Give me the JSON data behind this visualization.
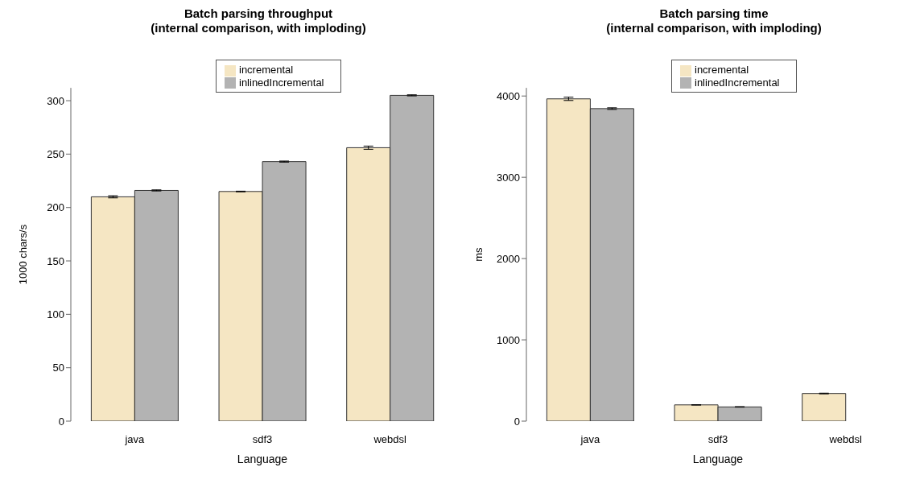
{
  "chart_data": [
    {
      "type": "bar",
      "title": "Batch parsing throughput\n(internal comparison, with imploding)",
      "xlabel": "Language",
      "ylabel": "1000 chars/s",
      "categories": [
        "java",
        "sdf3",
        "webdsl"
      ],
      "series": [
        {
          "name": "incremental",
          "color": "#f5e6c3",
          "values": [
            210,
            215,
            256
          ],
          "errors": [
            1,
            0.3,
            1.5
          ]
        },
        {
          "name": "inlinedIncremental",
          "color": "#b3b3b3",
          "values": [
            216,
            243,
            305
          ],
          "errors": [
            0.5,
            0.5,
            0.5
          ]
        }
      ],
      "ylim": [
        0,
        312
      ],
      "yticks": [
        0,
        50,
        100,
        150,
        200,
        250,
        300
      ],
      "legend": "top",
      "grid": false
    },
    {
      "type": "bar",
      "title": "Batch parsing time\n(internal comparison, with imploding)",
      "xlabel": "Language",
      "ylabel": "ms",
      "categories": [
        "java",
        "sdf3",
        "webdsl"
      ],
      "series": [
        {
          "name": "incremental",
          "color": "#f5e6c3",
          "values": [
            3965,
            200,
            340
          ],
          "errors": [
            20,
            3,
            4
          ]
        },
        {
          "name": "inlinedIncremental",
          "color": "#b3b3b3",
          "values": [
            3845,
            175,
            null
          ],
          "errors": [
            10,
            3,
            null
          ]
        }
      ],
      "ylim": [
        0,
        4100
      ],
      "yticks": [
        0,
        1000,
        2000,
        3000,
        4000
      ],
      "legend": "top",
      "grid": false
    }
  ]
}
